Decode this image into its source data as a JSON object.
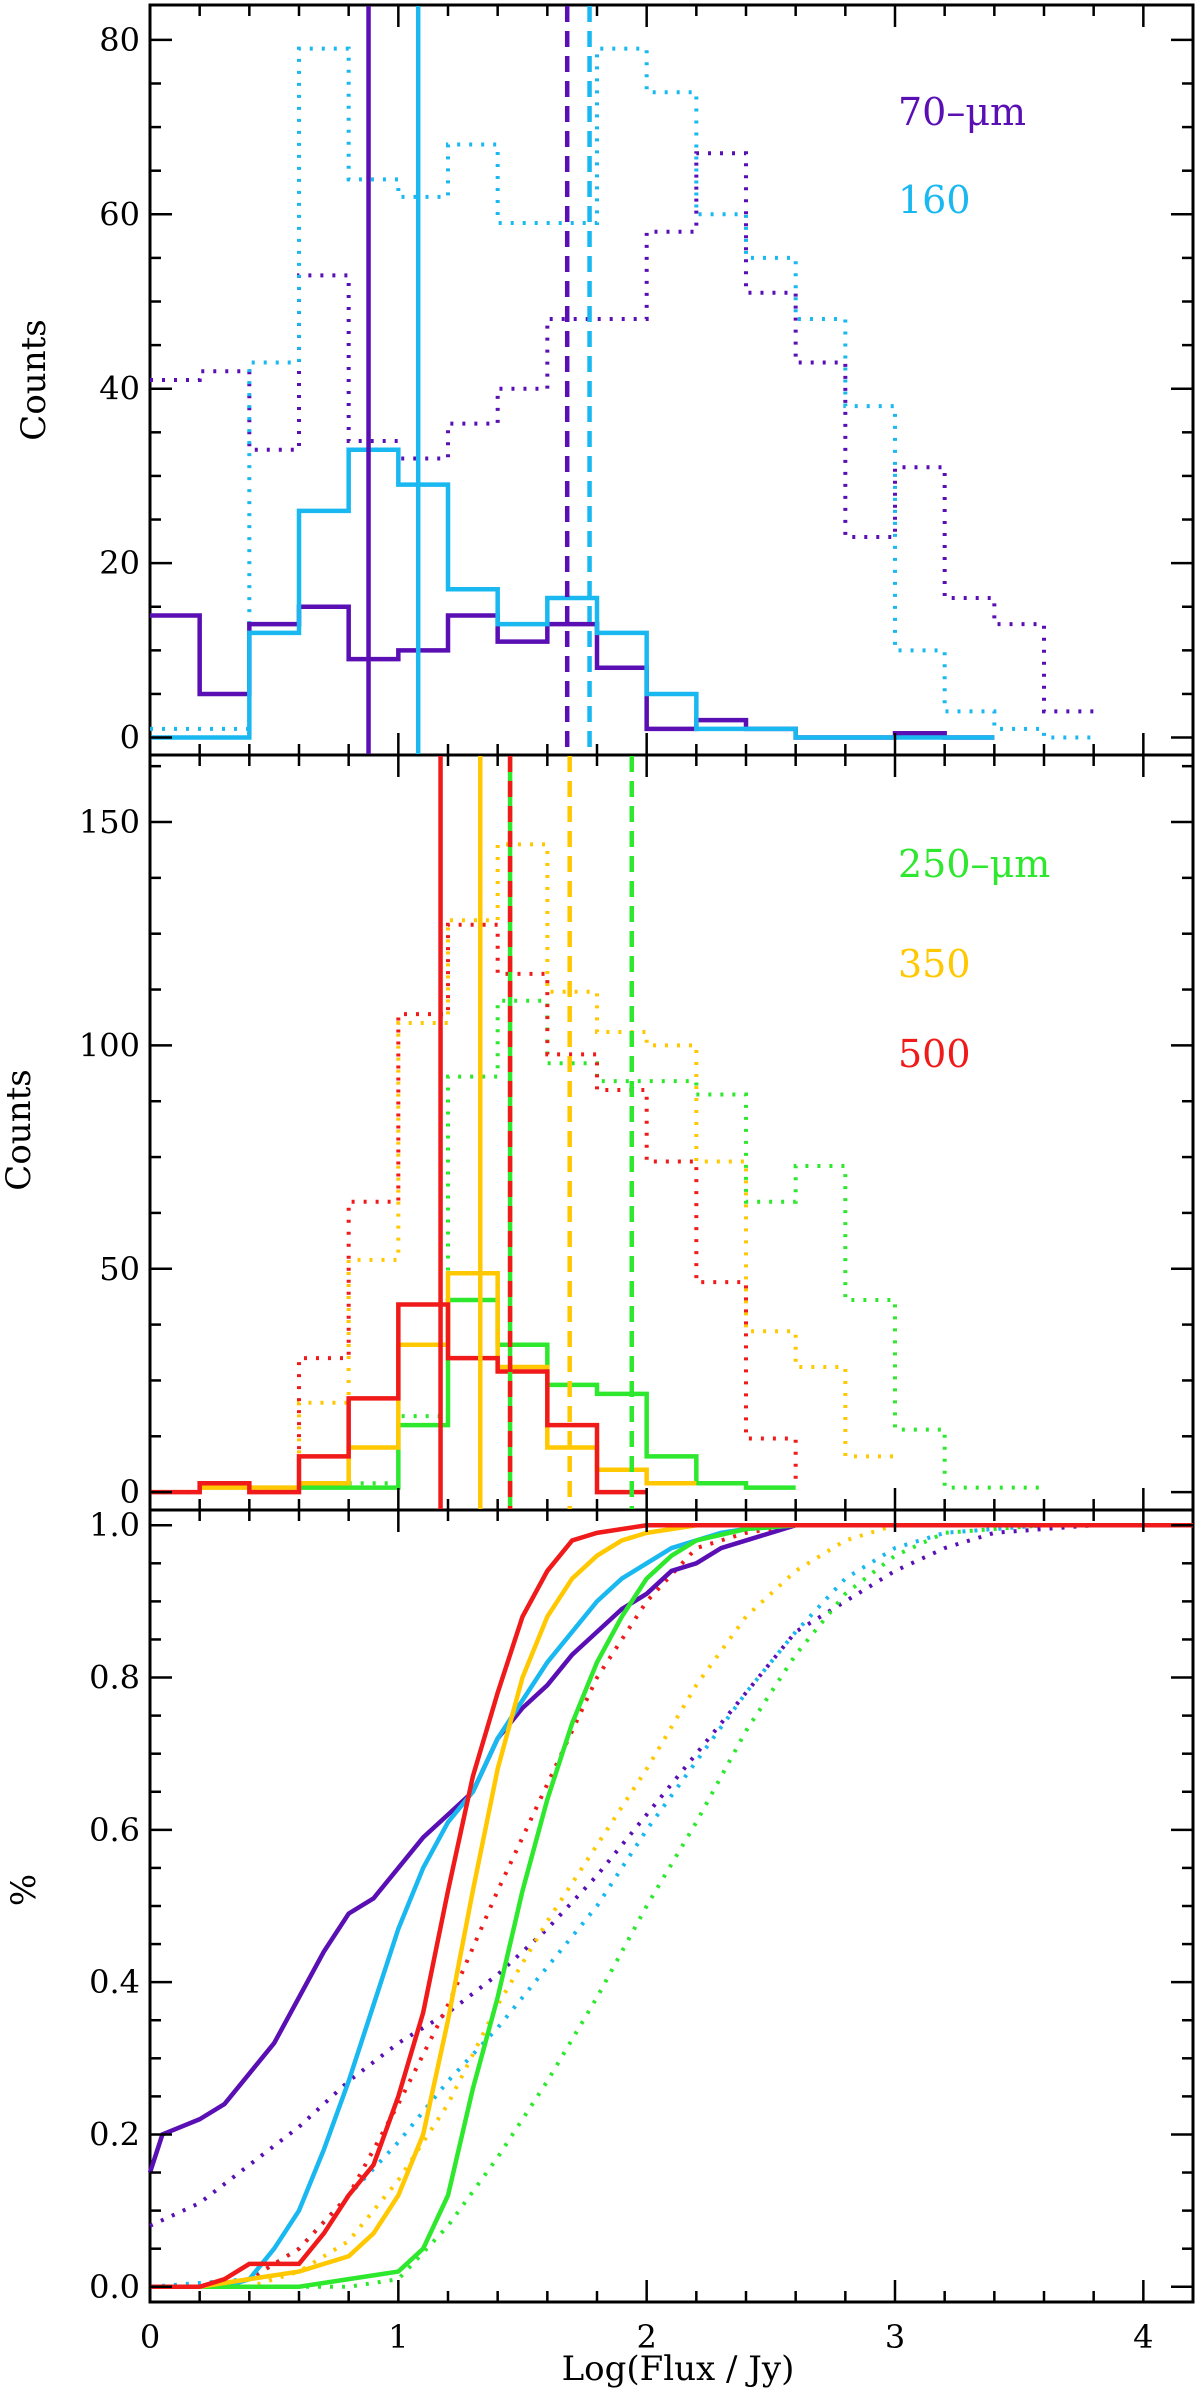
{
  "chart_data": [
    {
      "type": "step",
      "ylabel": "Counts",
      "xlim": [
        0,
        4.2
      ],
      "ylim": [
        -2,
        84
      ],
      "yticks": [
        0,
        20,
        40,
        60,
        80
      ],
      "legend": [
        "70–μm",
        "160"
      ],
      "legend_placement": "top-right",
      "series": [
        {
          "name": "70-um solid",
          "color": "#5a0fb4",
          "style": "solid",
          "edges": [
            0,
            0.2,
            0.4,
            0.6,
            0.8,
            1.0,
            1.2,
            1.4,
            1.6,
            1.8,
            2.0,
            2.2,
            2.4,
            2.6,
            2.8,
            3.0,
            3.2,
            3.4
          ],
          "counts": [
            14,
            5,
            13,
            15,
            9,
            10,
            14,
            11,
            13,
            8,
            1,
            2,
            1,
            0,
            0,
            0.5,
            0
          ]
        },
        {
          "name": "160 solid",
          "color": "#1ab8f0",
          "style": "solid",
          "edges": [
            0,
            0.2,
            0.4,
            0.6,
            0.8,
            1.0,
            1.2,
            1.4,
            1.6,
            1.8,
            2.0,
            2.2,
            2.4,
            2.6,
            2.8,
            3.0,
            3.2,
            3.4
          ],
          "counts": [
            0,
            0,
            12,
            26,
            33,
            29,
            17,
            13,
            16,
            12,
            5,
            1,
            1,
            0,
            0,
            0,
            0
          ]
        },
        {
          "name": "70-um dotted",
          "color": "#5a0fb4",
          "style": "dotted",
          "edges": [
            0,
            0.2,
            0.4,
            0.6,
            0.8,
            1.0,
            1.2,
            1.4,
            1.6,
            1.8,
            2.0,
            2.2,
            2.4,
            2.6,
            2.8,
            3.0,
            3.2,
            3.4,
            3.6,
            3.8
          ],
          "counts": [
            41,
            42,
            33,
            53,
            34,
            32,
            36,
            40,
            48,
            48,
            58,
            67,
            51,
            43,
            23,
            31,
            16,
            13,
            3
          ]
        },
        {
          "name": "160 dotted",
          "color": "#1ab8f0",
          "style": "dotted",
          "edges": [
            0,
            0.2,
            0.4,
            0.6,
            0.8,
            1.0,
            1.2,
            1.4,
            1.6,
            1.8,
            2.0,
            2.2,
            2.4,
            2.6,
            2.8,
            3.0,
            3.2,
            3.4,
            3.6,
            3.8
          ],
          "counts": [
            1,
            1,
            43,
            79,
            64,
            62,
            68,
            59,
            59,
            79,
            74,
            60,
            55,
            48,
            38,
            10,
            3,
            1,
            0
          ]
        }
      ],
      "vlines": [
        {
          "x": 0.88,
          "color": "#5a0fb4",
          "style": "solid"
        },
        {
          "x": 1.08,
          "color": "#1ab8f0",
          "style": "solid"
        },
        {
          "x": 1.68,
          "color": "#5a0fb4",
          "style": "dashed"
        },
        {
          "x": 1.77,
          "color": "#1ab8f0",
          "style": "dashed"
        }
      ]
    },
    {
      "type": "step",
      "ylabel": "Counts",
      "xlim": [
        0,
        4.2
      ],
      "ylim": [
        -4,
        165
      ],
      "yticks": [
        0,
        50,
        100,
        150
      ],
      "legend": [
        "250–μm",
        "350",
        "500"
      ],
      "legend_placement": "top-right",
      "series": [
        {
          "name": "250-um solid",
          "color": "#2ee82e",
          "style": "solid",
          "edges": [
            0.6,
            0.8,
            1.0,
            1.2,
            1.4,
            1.6,
            1.8,
            2.0,
            2.2,
            2.4,
            2.6
          ],
          "counts": [
            1,
            1,
            15,
            43,
            33,
            24,
            22,
            8,
            2,
            1
          ]
        },
        {
          "name": "350 solid",
          "color": "#ffc800",
          "style": "solid",
          "edges": [
            0.2,
            0.4,
            0.6,
            0.8,
            1.0,
            1.2,
            1.4,
            1.6,
            1.8,
            2.0,
            2.2
          ],
          "counts": [
            1,
            1,
            2,
            10,
            33,
            49,
            28,
            10,
            5,
            2
          ]
        },
        {
          "name": "500 solid",
          "color": "#f01a1a",
          "style": "solid",
          "edges": [
            0,
            0.2,
            0.4,
            0.6,
            0.8,
            1.0,
            1.2,
            1.4,
            1.6,
            1.8,
            2.0
          ],
          "counts": [
            0,
            2,
            0,
            8,
            21,
            42,
            30,
            27,
            15,
            0
          ]
        },
        {
          "name": "250-um dotted",
          "color": "#2ee82e",
          "style": "dotted",
          "edges": [
            0.8,
            1.0,
            1.2,
            1.4,
            1.6,
            1.8,
            2.0,
            2.2,
            2.4,
            2.6,
            2.8,
            3.0,
            3.2,
            3.4,
            3.6
          ],
          "counts": [
            2,
            17,
            93,
            110,
            96,
            92,
            92,
            89,
            65,
            73,
            43,
            14,
            1,
            1
          ]
        },
        {
          "name": "350 dotted",
          "color": "#ffc800",
          "style": "dotted",
          "edges": [
            0.4,
            0.6,
            0.8,
            1.0,
            1.2,
            1.4,
            1.6,
            1.8,
            2.0,
            2.2,
            2.4,
            2.6,
            2.8,
            3.0
          ],
          "counts": [
            1,
            20,
            52,
            105,
            128,
            145,
            112,
            103,
            100,
            74,
            36,
            28,
            8
          ]
        },
        {
          "name": "500 dotted",
          "color": "#f01a1a",
          "style": "dotted",
          "edges": [
            0,
            0.2,
            0.4,
            0.6,
            0.8,
            1.0,
            1.2,
            1.4,
            1.6,
            1.8,
            2.0,
            2.2,
            2.4,
            2.6
          ],
          "counts": [
            0,
            1,
            1,
            30,
            65,
            107,
            127,
            116,
            98,
            90,
            74,
            47,
            12,
            1
          ]
        }
      ],
      "vlines": [
        {
          "x": 1.17,
          "color": "#f01a1a",
          "style": "solid"
        },
        {
          "x": 1.33,
          "color": "#ffc800",
          "style": "solid"
        },
        {
          "x": 1.45,
          "color": "#2ee82e",
          "style": "solid"
        },
        {
          "x": 1.45,
          "color": "#f01a1a",
          "style": "dashed"
        },
        {
          "x": 1.69,
          "color": "#ffc800",
          "style": "dashed"
        },
        {
          "x": 1.94,
          "color": "#2ee82e",
          "style": "dashed"
        }
      ]
    },
    {
      "type": "line",
      "ylabel": "%",
      "xlabel": "Log(Flux / Jy)",
      "xlim": [
        0,
        4.2
      ],
      "ylim": [
        -0.02,
        1.02
      ],
      "xticks": [
        0,
        1,
        2,
        3,
        4
      ],
      "yticks": [
        0.0,
        0.2,
        0.4,
        0.6,
        0.8,
        1.0
      ],
      "ytick_labels": [
        "0.0",
        "0.2",
        "0.4",
        "0.6",
        "0.8",
        "1.0"
      ],
      "series": [
        {
          "name": "70-um solid cumulative",
          "color": "#5a0fb4",
          "style": "solid",
          "x": [
            0,
            0.05,
            0.2,
            0.3,
            0.4,
            0.5,
            0.6,
            0.7,
            0.8,
            0.9,
            1.0,
            1.1,
            1.2,
            1.3,
            1.4,
            1.5,
            1.6,
            1.7,
            1.8,
            1.9,
            2.0,
            2.1,
            2.2,
            2.3,
            2.4,
            2.5,
            2.6,
            3.0,
            4.2
          ],
          "y": [
            0.15,
            0.2,
            0.22,
            0.24,
            0.28,
            0.32,
            0.38,
            0.44,
            0.49,
            0.51,
            0.55,
            0.59,
            0.62,
            0.65,
            0.72,
            0.76,
            0.79,
            0.83,
            0.86,
            0.89,
            0.91,
            0.94,
            0.95,
            0.97,
            0.98,
            0.99,
            1.0,
            1.0,
            1.0
          ]
        },
        {
          "name": "160 solid cumulative",
          "color": "#1ab8f0",
          "style": "solid",
          "x": [
            0,
            0.3,
            0.4,
            0.5,
            0.6,
            0.7,
            0.8,
            0.9,
            1.0,
            1.1,
            1.2,
            1.3,
            1.4,
            1.5,
            1.6,
            1.7,
            1.8,
            1.9,
            2.0,
            2.1,
            2.2,
            2.3,
            2.4,
            2.6,
            4.2
          ],
          "y": [
            0.0,
            0.0,
            0.01,
            0.05,
            0.1,
            0.18,
            0.27,
            0.37,
            0.47,
            0.55,
            0.61,
            0.65,
            0.72,
            0.77,
            0.82,
            0.86,
            0.9,
            0.93,
            0.95,
            0.97,
            0.98,
            0.99,
            0.995,
            1.0,
            1.0
          ]
        },
        {
          "name": "250-um solid cumulative",
          "color": "#2ee82e",
          "style": "solid",
          "x": [
            0,
            0.6,
            0.8,
            1.0,
            1.1,
            1.2,
            1.3,
            1.4,
            1.5,
            1.6,
            1.7,
            1.8,
            1.9,
            2.0,
            2.1,
            2.2,
            2.4,
            2.6,
            4.2
          ],
          "y": [
            0.0,
            0.0,
            0.01,
            0.02,
            0.05,
            0.12,
            0.26,
            0.38,
            0.52,
            0.64,
            0.74,
            0.82,
            0.88,
            0.93,
            0.96,
            0.98,
            0.995,
            1.0,
            1.0
          ]
        },
        {
          "name": "350 solid cumulative",
          "color": "#ffc800",
          "style": "solid",
          "x": [
            0,
            0.2,
            0.4,
            0.6,
            0.8,
            0.9,
            1.0,
            1.1,
            1.2,
            1.3,
            1.4,
            1.5,
            1.6,
            1.7,
            1.8,
            1.9,
            2.0,
            2.2,
            2.4,
            4.2
          ],
          "y": [
            0.0,
            0.0,
            0.01,
            0.02,
            0.04,
            0.07,
            0.12,
            0.2,
            0.35,
            0.52,
            0.68,
            0.8,
            0.88,
            0.93,
            0.96,
            0.98,
            0.99,
            1.0,
            1.0,
            1.0
          ]
        },
        {
          "name": "500 solid cumulative",
          "color": "#f01a1a",
          "style": "solid",
          "x": [
            0,
            0.2,
            0.3,
            0.4,
            0.6,
            0.7,
            0.8,
            0.9,
            1.0,
            1.1,
            1.2,
            1.3,
            1.4,
            1.5,
            1.6,
            1.7,
            1.8,
            2.0,
            2.2,
            4.2
          ],
          "y": [
            0.0,
            0.0,
            0.01,
            0.03,
            0.03,
            0.07,
            0.12,
            0.16,
            0.25,
            0.36,
            0.52,
            0.67,
            0.78,
            0.88,
            0.94,
            0.98,
            0.99,
            1.0,
            1.0,
            1.0
          ]
        },
        {
          "name": "70-um dotted cumulative",
          "color": "#5a0fb4",
          "style": "dotted",
          "x": [
            0,
            0.2,
            0.4,
            0.6,
            0.8,
            1.0,
            1.2,
            1.4,
            1.6,
            1.8,
            2.0,
            2.2,
            2.4,
            2.6,
            2.8,
            3.0,
            3.2,
            3.4,
            3.6,
            3.8,
            4.0,
            4.2
          ],
          "y": [
            0.08,
            0.11,
            0.16,
            0.21,
            0.27,
            0.32,
            0.36,
            0.41,
            0.47,
            0.54,
            0.62,
            0.7,
            0.78,
            0.86,
            0.9,
            0.94,
            0.97,
            0.99,
            0.995,
            1.0,
            1.0,
            1.0
          ]
        },
        {
          "name": "160 dotted cumulative",
          "color": "#1ab8f0",
          "style": "dotted",
          "x": [
            0,
            0.4,
            0.6,
            0.8,
            1.0,
            1.2,
            1.4,
            1.6,
            1.8,
            2.0,
            2.2,
            2.4,
            2.6,
            2.8,
            3.0,
            3.2,
            3.4,
            3.6,
            3.8,
            4.2
          ],
          "y": [
            0.0,
            0.01,
            0.05,
            0.12,
            0.19,
            0.27,
            0.34,
            0.42,
            0.5,
            0.6,
            0.69,
            0.78,
            0.86,
            0.93,
            0.97,
            0.99,
            0.995,
            1.0,
            1.0,
            1.0
          ]
        },
        {
          "name": "250-um dotted cumulative",
          "color": "#2ee82e",
          "style": "dotted",
          "x": [
            0,
            0.8,
            1.0,
            1.2,
            1.4,
            1.6,
            1.8,
            2.0,
            2.2,
            2.4,
            2.6,
            2.8,
            3.0,
            3.2,
            3.4,
            3.6,
            4.2
          ],
          "y": [
            0.0,
            0.0,
            0.01,
            0.08,
            0.17,
            0.27,
            0.38,
            0.5,
            0.61,
            0.73,
            0.83,
            0.91,
            0.96,
            0.99,
            0.995,
            1.0,
            1.0
          ]
        },
        {
          "name": "350 dotted cumulative",
          "color": "#ffc800",
          "style": "dotted",
          "x": [
            0,
            0.4,
            0.6,
            0.8,
            1.0,
            1.2,
            1.4,
            1.6,
            1.8,
            2.0,
            2.2,
            2.4,
            2.6,
            2.8,
            3.0,
            4.2
          ],
          "y": [
            0.0,
            0.0,
            0.02,
            0.06,
            0.14,
            0.24,
            0.37,
            0.48,
            0.58,
            0.68,
            0.79,
            0.88,
            0.94,
            0.98,
            1.0,
            1.0
          ]
        },
        {
          "name": "500 dotted cumulative",
          "color": "#f01a1a",
          "style": "dotted",
          "x": [
            0,
            0.2,
            0.4,
            0.6,
            0.8,
            1.0,
            1.2,
            1.4,
            1.6,
            1.8,
            2.0,
            2.2,
            2.4,
            2.6,
            4.2
          ],
          "y": [
            0.0,
            0.0,
            0.01,
            0.05,
            0.12,
            0.24,
            0.37,
            0.52,
            0.66,
            0.8,
            0.9,
            0.97,
            0.99,
            1.0,
            1.0
          ]
        }
      ]
    }
  ]
}
